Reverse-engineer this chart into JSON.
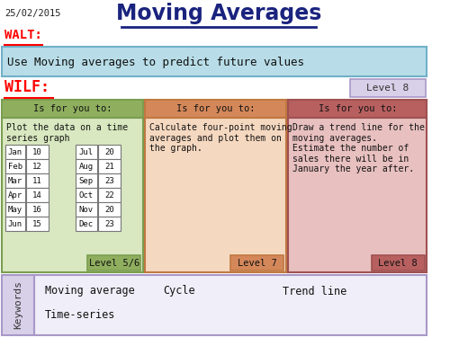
{
  "title": "Moving Averages",
  "date": "25/02/2015",
  "walt_label": "WALT:",
  "walt_text": "Use Moving averages to predict future values",
  "wilf_label": "WILF:",
  "level8_top": "Level 8",
  "boxes": [
    {
      "header": "Is for you to:",
      "header_color": "#8faf5f",
      "body_color": "#d9e8c0",
      "border_color": "#7a9e50",
      "text": "Plot the data on a time\nseries graph",
      "has_table": true,
      "level": "Level 5/6",
      "level_color": "#8faf5f"
    },
    {
      "header": "Is for you to:",
      "header_color": "#d4885a",
      "body_color": "#f5d8c0",
      "border_color": "#c07840",
      "text": "Calculate four-point moving\naverages and plot them on\nthe graph.",
      "has_table": false,
      "level": "Level 7",
      "level_color": "#d4885a"
    },
    {
      "header": "Is for you to:",
      "header_color": "#b86060",
      "body_color": "#e8c0c0",
      "border_color": "#a05050",
      "text": "Draw a trend line for the\nmoving averages.\nEstimate the number of\nsales there will be in\nJanuary the year after.",
      "has_table": false,
      "level": "Level 8",
      "level_color": "#b86060"
    }
  ],
  "table_data": [
    [
      "Jan",
      "10",
      "Jul",
      "20"
    ],
    [
      "Feb",
      "12",
      "Aug",
      "21"
    ],
    [
      "Mar",
      "11",
      "Sep",
      "23"
    ],
    [
      "Apr",
      "14",
      "Oct",
      "22"
    ],
    [
      "May",
      "16",
      "Nov",
      "20"
    ],
    [
      "Jun",
      "15",
      "Dec",
      "23"
    ]
  ],
  "keywords": [
    "Moving average",
    "Cycle",
    "Trend line",
    "Time-series"
  ],
  "keywords_label": "Keywords",
  "bg_color": "#ffffff",
  "walt_box_color": "#b8dde8",
  "walt_border_color": "#70b0c8",
  "keywords_bg": "#d8d0e8",
  "keywords_border": "#a898c8",
  "level8_box_color": "#d8d0e8",
  "level8_border_color": "#a898c8"
}
